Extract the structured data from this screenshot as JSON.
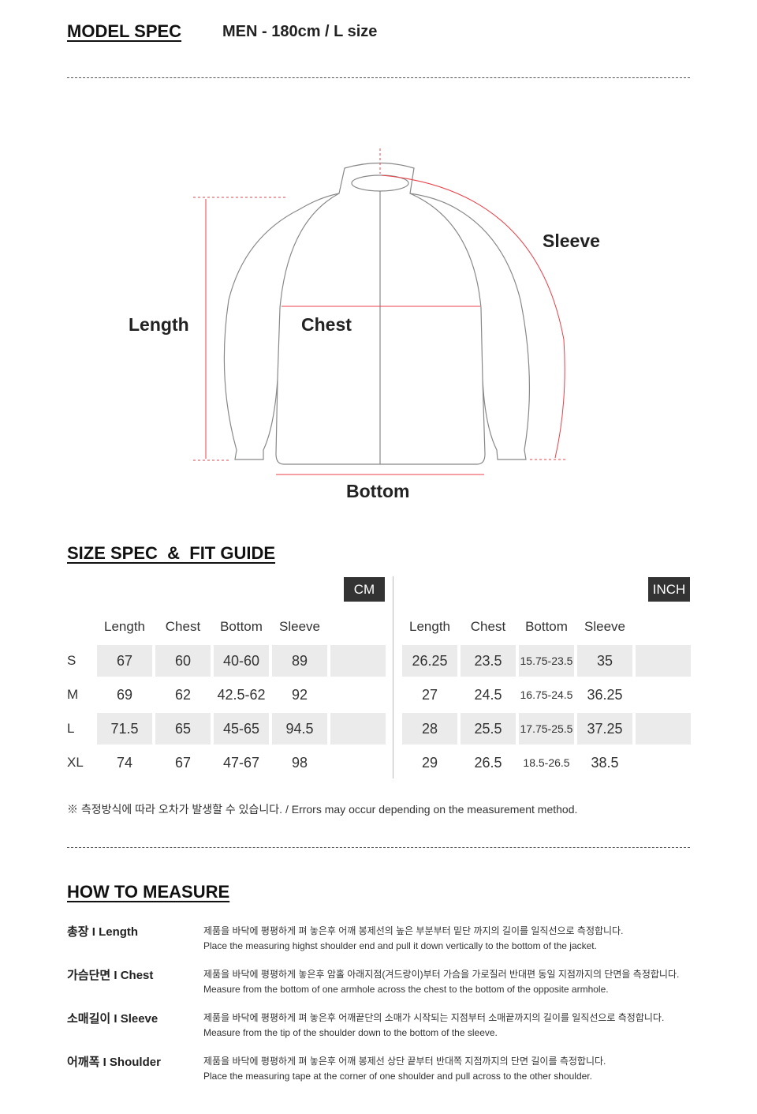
{
  "model_spec": {
    "title": "MODEL SPEC",
    "value": "MEN - 180cm / L size"
  },
  "diagram": {
    "labels": {
      "length": "Length",
      "chest": "Chest",
      "sleeve": "Sleeve",
      "bottom": "Bottom"
    },
    "accent": "#e8414a"
  },
  "size_spec": {
    "title": "SIZE SPEC  &  FIT GUIDE",
    "sizes": [
      "S",
      "M",
      "L",
      "XL"
    ],
    "cm": {
      "unit": "CM",
      "columns": [
        "Length",
        "Chest",
        "Bottom",
        "Sleeve"
      ],
      "rows": [
        [
          "67",
          "60",
          "40-60",
          "89"
        ],
        [
          "69",
          "62",
          "42.5-62",
          "92"
        ],
        [
          "71.5",
          "65",
          "45-65",
          "94.5"
        ],
        [
          "74",
          "67",
          "47-67",
          "98"
        ]
      ]
    },
    "inch": {
      "unit": "INCH",
      "columns": [
        "Length",
        "Chest",
        "Bottom",
        "Sleeve"
      ],
      "rows": [
        [
          "26.25",
          "23.5",
          "15.75-23.5",
          "35"
        ],
        [
          "27",
          "24.5",
          "16.75-24.5",
          "36.25"
        ],
        [
          "28",
          "25.5",
          "17.75-25.5",
          "37.25"
        ],
        [
          "29",
          "26.5",
          "18.5-26.5",
          "38.5"
        ]
      ]
    },
    "note": "※ 측정방식에 따라 오차가 발생할 수 있습니다. / Errors may occur depending on the measurement method."
  },
  "how_to_measure": {
    "title": "HOW TO MEASURE",
    "items": [
      {
        "label": "총장 I Length",
        "ko": "제품을 바닥에 평평하게 펴 놓은후 어깨 봉제선의 높은 부분부터 밑단 까지의 길이를 일직선으로 측정합니다.",
        "en": "Place the measuring highst shoulder end and pull it down vertically to the bottom of the jacket."
      },
      {
        "label": "가슴단면 I Chest",
        "ko": "제품을 바닥에 평평하게 놓은후 암홀 아래지점(겨드랑이)부터 가슴을 가로질러 반대편 동일 지점까지의 단면을 측정합니다.",
        "en": "Measure from the bottom of one armhole across the chest to the bottom of the opposite armhole."
      },
      {
        "label": "소매길이 I Sleeve",
        "ko": "제품을 바닥에 평평하게 펴 놓은후 어깨끝단의 소매가 시작되는 지점부터 소매끝까지의 길이를 일직선으로 측정합니다.",
        "en": "Measure from the tip of the shoulder down to the bottom of the sleeve."
      },
      {
        "label": "어깨폭 I Shoulder",
        "ko": "제품을 바닥에 평평하게 펴 놓은후 어깨 봉제선 상단 끝부터 반대쪽 지점까지의 단면 길이를 측정합니다.",
        "en": "Place the measuring tape at the corner of one shoulder and pull across to the other shoulder."
      }
    ]
  }
}
